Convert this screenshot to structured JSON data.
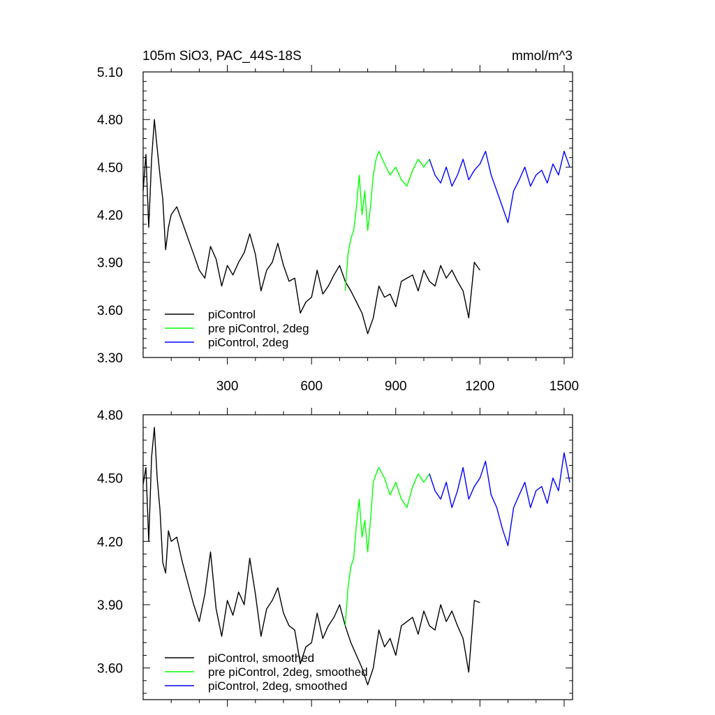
{
  "chart_data": [
    {
      "type": "line",
      "title": "105m SiO3, PAC_44S-18S",
      "units": "mmol/m^3",
      "xlabel": "",
      "ylabel": "",
      "xlim": [
        0,
        1530
      ],
      "ylim": [
        3.3,
        5.1
      ],
      "xticks": [
        300,
        600,
        900,
        1200,
        1500
      ],
      "xtick_labels": [
        "300",
        "600",
        "900",
        "1200",
        "1500"
      ],
      "yticks": [
        3.3,
        3.6,
        3.9,
        4.2,
        4.5,
        4.8,
        5.1
      ],
      "ytick_labels": [
        "3.30",
        "3.60",
        "3.90",
        "4.20",
        "4.50",
        "4.80",
        "5.10"
      ],
      "grid": false,
      "legend_position": "bottom-left",
      "series": [
        {
          "name": "piControl",
          "color": "#000000",
          "x": [
            0,
            10,
            20,
            30,
            40,
            50,
            60,
            70,
            80,
            90,
            100,
            120,
            140,
            160,
            180,
            200,
            220,
            240,
            260,
            280,
            300,
            320,
            340,
            360,
            380,
            400,
            420,
            440,
            460,
            480,
            500,
            520,
            540,
            560,
            580,
            600,
            620,
            640,
            660,
            680,
            700,
            720,
            740,
            760,
            780,
            800,
            820,
            840,
            860,
            880,
            900,
            920,
            940,
            960,
            980,
            1000,
            1020,
            1040,
            1060,
            1080,
            1100,
            1120,
            1140,
            1160,
            1180,
            1200
          ],
          "values": [
            4.35,
            4.58,
            4.12,
            4.55,
            4.8,
            4.62,
            4.45,
            4.3,
            3.98,
            4.12,
            4.2,
            4.25,
            4.15,
            4.05,
            3.95,
            3.85,
            3.8,
            4.0,
            3.92,
            3.75,
            3.88,
            3.82,
            3.9,
            3.96,
            4.08,
            3.95,
            3.72,
            3.85,
            3.9,
            4.02,
            3.88,
            3.78,
            3.8,
            3.58,
            3.65,
            3.68,
            3.85,
            3.7,
            3.75,
            3.82,
            3.88,
            3.78,
            3.72,
            3.65,
            3.58,
            3.45,
            3.55,
            3.75,
            3.68,
            3.7,
            3.62,
            3.78,
            3.8,
            3.82,
            3.72,
            3.85,
            3.78,
            3.75,
            3.88,
            3.8,
            3.85,
            3.78,
            3.72,
            3.55,
            3.9,
            3.85
          ]
        },
        {
          "name": "pre piControl, 2deg",
          "color": "#00ff00",
          "x": [
            720,
            730,
            740,
            750,
            760,
            770,
            780,
            790,
            800,
            810,
            820,
            830,
            840,
            860,
            880,
            900,
            920,
            940,
            960,
            980,
            1000,
            1020
          ],
          "values": [
            3.72,
            3.95,
            4.05,
            4.1,
            4.25,
            4.45,
            4.2,
            4.35,
            4.1,
            4.25,
            4.45,
            4.55,
            4.6,
            4.52,
            4.45,
            4.5,
            4.42,
            4.38,
            4.48,
            4.55,
            4.5,
            4.55
          ]
        },
        {
          "name": "piControl, 2deg",
          "color": "#0000ff",
          "x": [
            1020,
            1040,
            1060,
            1080,
            1100,
            1120,
            1140,
            1160,
            1180,
            1200,
            1220,
            1240,
            1260,
            1280,
            1300,
            1320,
            1340,
            1360,
            1380,
            1400,
            1420,
            1440,
            1460,
            1480,
            1500,
            1520
          ],
          "values": [
            4.55,
            4.45,
            4.4,
            4.5,
            4.38,
            4.45,
            4.55,
            4.42,
            4.48,
            4.52,
            4.6,
            4.45,
            4.35,
            4.25,
            4.15,
            4.35,
            4.42,
            4.5,
            4.38,
            4.45,
            4.48,
            4.4,
            4.52,
            4.45,
            4.6,
            4.5
          ]
        }
      ]
    },
    {
      "type": "line",
      "title": "",
      "xlabel": "",
      "ylabel": "",
      "xlim": [
        0,
        1530
      ],
      "ylim": [
        3.45,
        4.8
      ],
      "xticks": [
        300,
        600,
        900,
        1200,
        1500
      ],
      "yticks": [
        3.6,
        3.9,
        4.2,
        4.5,
        4.8
      ],
      "ytick_labels": [
        "3.60",
        "3.90",
        "4.20",
        "4.50",
        "4.80"
      ],
      "grid": false,
      "legend_position": "bottom-left",
      "series": [
        {
          "name": "piControl, smoothed",
          "color": "#000000",
          "x": [
            0,
            10,
            20,
            30,
            40,
            50,
            60,
            70,
            80,
            90,
            100,
            120,
            140,
            160,
            180,
            200,
            220,
            240,
            260,
            280,
            300,
            320,
            340,
            360,
            380,
            400,
            420,
            440,
            460,
            480,
            500,
            520,
            540,
            560,
            580,
            600,
            620,
            640,
            660,
            680,
            700,
            720,
            740,
            760,
            780,
            800,
            820,
            840,
            860,
            880,
            900,
            920,
            940,
            960,
            980,
            1000,
            1020,
            1040,
            1060,
            1080,
            1100,
            1120,
            1140,
            1160,
            1180,
            1200
          ],
          "values": [
            4.47,
            4.55,
            4.2,
            4.6,
            4.74,
            4.5,
            4.35,
            4.1,
            4.05,
            4.25,
            4.2,
            4.22,
            4.1,
            4.0,
            3.9,
            3.82,
            3.95,
            4.15,
            3.88,
            3.75,
            3.92,
            3.85,
            3.96,
            3.9,
            4.12,
            3.95,
            3.75,
            3.88,
            3.92,
            3.98,
            3.86,
            3.8,
            3.78,
            3.62,
            3.7,
            3.72,
            3.86,
            3.74,
            3.8,
            3.84,
            3.9,
            3.8,
            3.72,
            3.66,
            3.6,
            3.52,
            3.6,
            3.78,
            3.7,
            3.74,
            3.66,
            3.8,
            3.82,
            3.84,
            3.76,
            3.87,
            3.8,
            3.78,
            3.9,
            3.82,
            3.87,
            3.8,
            3.74,
            3.58,
            3.92,
            3.91
          ]
        },
        {
          "name": "pre piControl, 2deg, smoothed",
          "color": "#00ff00",
          "x": [
            720,
            730,
            740,
            750,
            760,
            770,
            780,
            790,
            800,
            810,
            820,
            830,
            840,
            860,
            880,
            900,
            920,
            940,
            960,
            980,
            1000,
            1020
          ],
          "values": [
            3.8,
            3.98,
            4.08,
            4.12,
            4.28,
            4.4,
            4.22,
            4.3,
            4.15,
            4.3,
            4.48,
            4.52,
            4.55,
            4.5,
            4.42,
            4.48,
            4.4,
            4.36,
            4.46,
            4.52,
            4.48,
            4.52
          ]
        },
        {
          "name": "piControl, 2deg, smoothed",
          "color": "#0000ff",
          "x": [
            1020,
            1040,
            1060,
            1080,
            1100,
            1120,
            1140,
            1160,
            1180,
            1200,
            1220,
            1240,
            1260,
            1280,
            1300,
            1320,
            1340,
            1360,
            1380,
            1400,
            1420,
            1440,
            1460,
            1480,
            1500,
            1520
          ],
          "values": [
            4.52,
            4.44,
            4.4,
            4.48,
            4.36,
            4.44,
            4.55,
            4.4,
            4.46,
            4.5,
            4.58,
            4.42,
            4.36,
            4.26,
            4.18,
            4.36,
            4.42,
            4.48,
            4.36,
            4.44,
            4.46,
            4.38,
            4.5,
            4.44,
            4.62,
            4.48
          ]
        }
      ]
    }
  ]
}
